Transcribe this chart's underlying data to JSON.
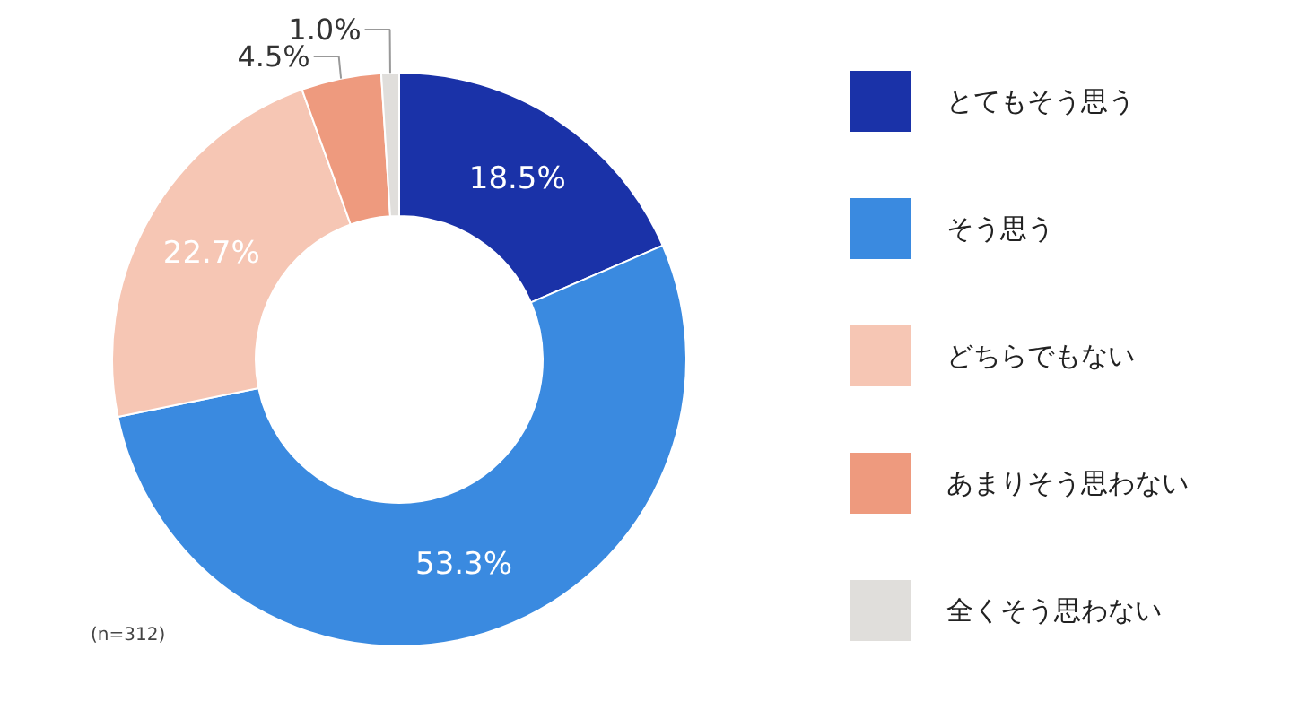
{
  "chart_data": {
    "type": "donut",
    "categories": [
      "とてもそう思う",
      "そう思う",
      "どちらでもない",
      "あまりそう思わない",
      "全くそう思わない"
    ],
    "values": [
      18.5,
      53.3,
      22.7,
      4.5,
      1.0
    ],
    "colors": [
      "#1a32a8",
      "#3a8ae0",
      "#f6c6b4",
      "#ee9a7e",
      "#e0dedb"
    ],
    "value_labels": [
      "18.5%",
      "53.3%",
      "22.7%",
      "4.5%",
      "1.0%"
    ],
    "legend": "right",
    "annotations": [
      "(n=312)"
    ]
  }
}
